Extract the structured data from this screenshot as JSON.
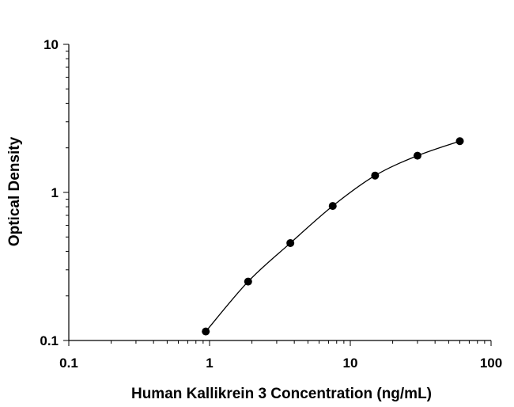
{
  "chart_data": {
    "type": "scatter",
    "title": "",
    "xlabel": "Human Kallikrein 3 Concentration (ng/mL)",
    "ylabel": "Optical Density",
    "xscale": "log",
    "yscale": "log",
    "xlim": [
      0.1,
      100
    ],
    "ylim": [
      0.1,
      10
    ],
    "x_ticks": [
      0.1,
      1,
      10,
      100
    ],
    "x_tick_labels": [
      "0.1",
      "1",
      "10",
      "100"
    ],
    "y_ticks": [
      0.1,
      1,
      10
    ],
    "y_tick_labels": [
      "0.1",
      "1",
      "10"
    ],
    "grid": false,
    "legend": "none",
    "fit_curve": true,
    "marker_color": "#000000",
    "x": [
      0.94,
      1.88,
      3.75,
      7.5,
      15,
      30,
      60
    ],
    "y": [
      0.115,
      0.25,
      0.455,
      0.81,
      1.3,
      1.77,
      2.22
    ]
  }
}
